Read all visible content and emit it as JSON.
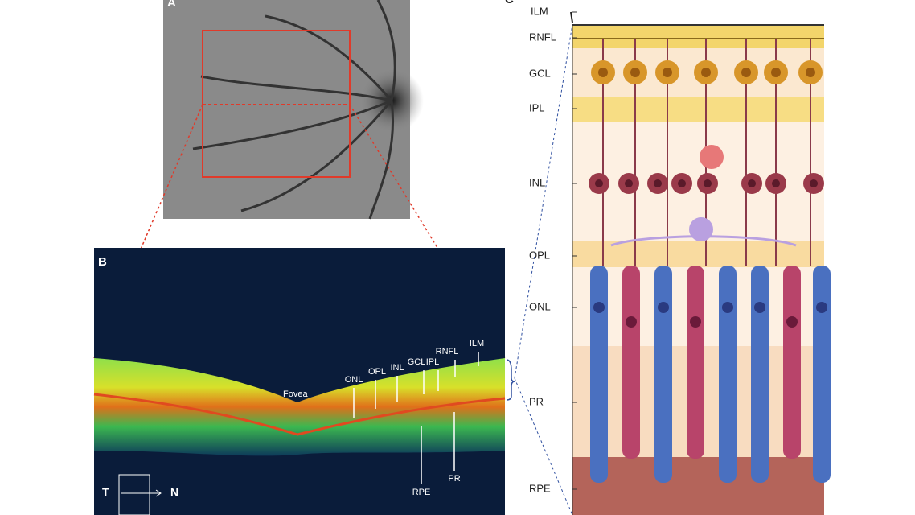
{
  "panel_a": {
    "label": "A"
  },
  "panel_b": {
    "label": "B",
    "fovea": "Fovea",
    "layer_labels": [
      "ONL",
      "OPL",
      "INL",
      "GCL",
      "IPL",
      "RNFL",
      "ILM",
      "RPE",
      "PR"
    ],
    "temporal": "T",
    "nasal": "N"
  },
  "panel_c": {
    "label": "C",
    "layers": [
      "ILM",
      "RNFL",
      "GCL",
      "IPL",
      "INL",
      "OPL",
      "ONL",
      "PR",
      "RPE"
    ]
  }
}
